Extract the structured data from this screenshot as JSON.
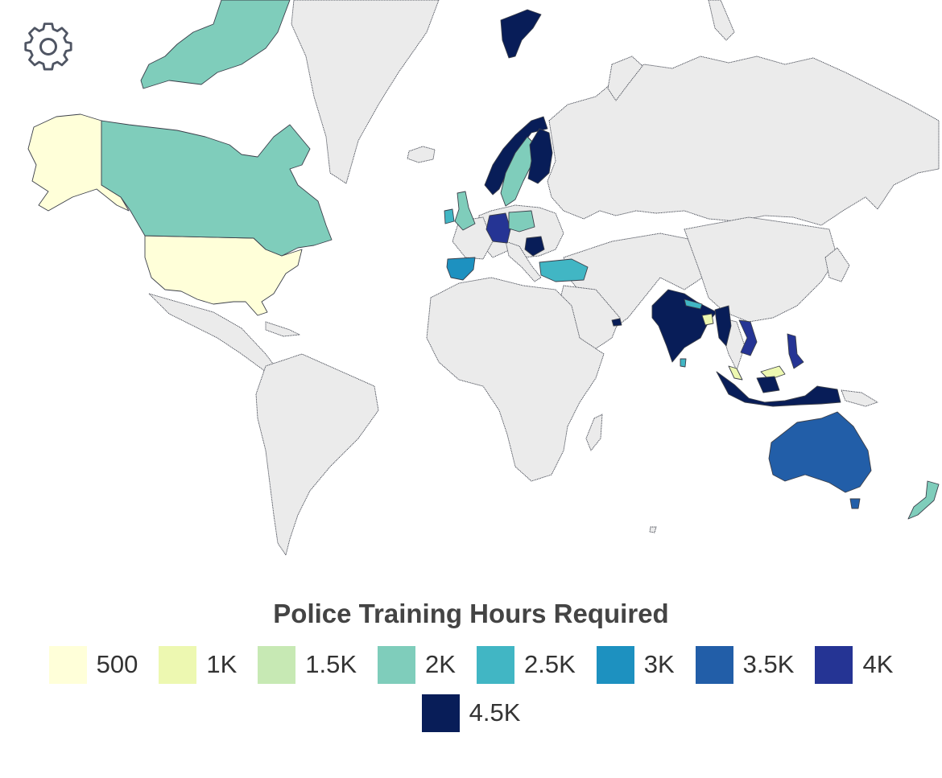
{
  "legend": {
    "title": "Police Training Hours Required",
    "items": [
      {
        "label": "500",
        "value": 500,
        "color": "#ffffd9"
      },
      {
        "label": "1K",
        "value": 1000,
        "color": "#edf8b1"
      },
      {
        "label": "1.5K",
        "value": 1500,
        "color": "#c7e9b4"
      },
      {
        "label": "2K",
        "value": 2000,
        "color": "#7fcdbb"
      },
      {
        "label": "2.5K",
        "value": 2500,
        "color": "#41b6c4"
      },
      {
        "label": "3K",
        "value": 3000,
        "color": "#1d91c0"
      },
      {
        "label": "3.5K",
        "value": 3500,
        "color": "#225ea8"
      },
      {
        "label": "4K",
        "value": 4000,
        "color": "#253494"
      },
      {
        "label": "4.5K",
        "value": 4500,
        "color": "#081d58"
      }
    ]
  },
  "map": {
    "base_color": "#ebebeb",
    "icons": {
      "settings": "gear-icon"
    },
    "countries": [
      {
        "id": "alaska",
        "value": 500
      },
      {
        "id": "usa",
        "value": 500
      },
      {
        "id": "canada",
        "value": 2000
      },
      {
        "id": "canada-arctic",
        "value": 2000
      },
      {
        "id": "norway",
        "value": 4500
      },
      {
        "id": "sweden",
        "value": 2000
      },
      {
        "id": "finland",
        "value": 4500
      },
      {
        "id": "uk",
        "value": 2000
      },
      {
        "id": "ireland",
        "value": 2500
      },
      {
        "id": "germany",
        "value": 4000
      },
      {
        "id": "poland",
        "value": 2000
      },
      {
        "id": "spain",
        "value": 3000
      },
      {
        "id": "romania",
        "value": 4500
      },
      {
        "id": "turkey",
        "value": 2500
      },
      {
        "id": "india",
        "value": 4500
      },
      {
        "id": "nepal",
        "value": 2500
      },
      {
        "id": "bangladesh",
        "value": 1000
      },
      {
        "id": "myanmar",
        "value": 4500
      },
      {
        "id": "vietnam",
        "value": 4000
      },
      {
        "id": "sri-lanka",
        "value": 2500
      },
      {
        "id": "malaysia",
        "value": 1000
      },
      {
        "id": "indonesia",
        "value": 4500
      },
      {
        "id": "philippines",
        "value": 4000
      },
      {
        "id": "australia",
        "value": 3500
      },
      {
        "id": "tasmania",
        "value": 3500
      },
      {
        "id": "new-zealand",
        "value": 2000
      },
      {
        "id": "svalbard",
        "value": 4500
      },
      {
        "id": "uae",
        "value": 4500
      }
    ]
  }
}
